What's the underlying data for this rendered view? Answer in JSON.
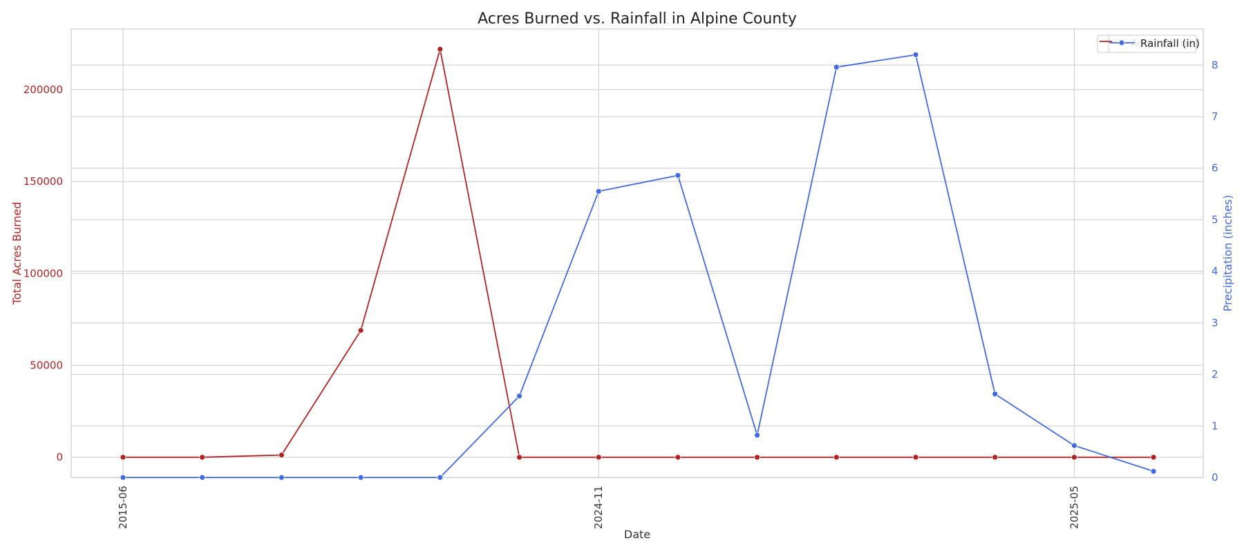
{
  "chart_data": {
    "type": "line",
    "title": "Acres Burned vs. Rainfall in Alpine County",
    "xlabel": "Date",
    "ylabel_left": "Total Acres Burned",
    "ylabel_right": "Precipitation (inches)",
    "x_tick_labels": [
      "2015-06",
      "2024-11",
      "2025-05"
    ],
    "x_tick_indices": [
      0,
      6,
      12
    ],
    "ylim_left": [
      -11000,
      233000
    ],
    "ylim_right": [
      0,
      8.7
    ],
    "yticks_left": [
      0,
      50000,
      100000,
      150000,
      200000
    ],
    "yticks_right": [
      0,
      1,
      2,
      3,
      4,
      5,
      6,
      7,
      8
    ],
    "grid": true,
    "legend_position": "top-right",
    "legend": [
      {
        "label": "Acres Burned",
        "color": "#b22222"
      },
      {
        "label": "Rainfall (in)",
        "color": "#4169e1"
      }
    ],
    "series": [
      {
        "name": "Acres Burned",
        "axis": "left",
        "color": "#b22222",
        "values": [
          0,
          0,
          1200,
          69000,
          222000,
          0,
          0,
          0,
          0,
          0,
          0,
          0,
          0,
          0
        ]
      },
      {
        "name": "Rainfall (in)",
        "axis": "right",
        "color": "#4169e1",
        "values": [
          0,
          0,
          0,
          0,
          0,
          1.58,
          5.55,
          5.86,
          0.82,
          7.96,
          8.2,
          1.62,
          0.62,
          0.12
        ]
      }
    ]
  }
}
